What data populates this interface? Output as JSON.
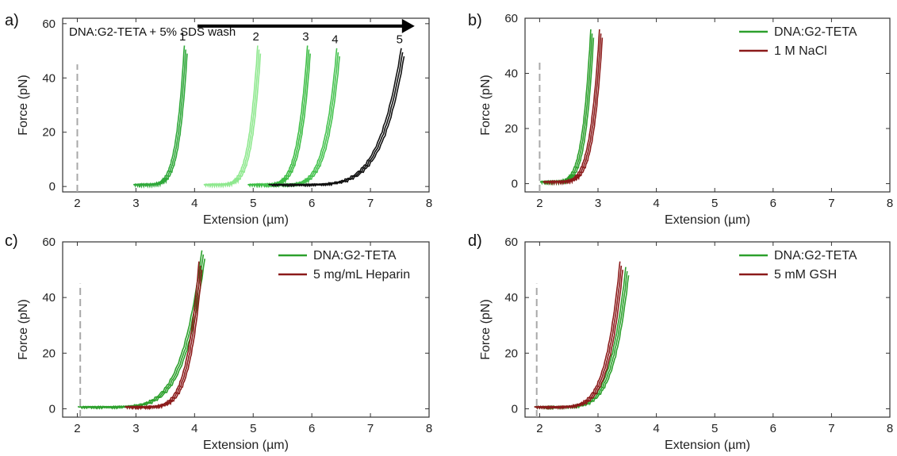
{
  "chart_data": [
    {
      "panel_label": "a)",
      "type": "line",
      "xlabel": "Extension (µm)",
      "ylabel": "Force (pN)",
      "xlim": [
        1.75,
        8
      ],
      "ylim": [
        -2,
        62
      ],
      "xticks": [
        2,
        3,
        4,
        5,
        6,
        7,
        8
      ],
      "yticks": [
        0,
        20,
        40,
        60
      ],
      "ref_x": 2.0,
      "ref_color": "#a9a9a9",
      "annotation": "DNA:G2-TETA + 5% SDS wash",
      "annotation_color": "#111111",
      "arrow": {
        "x_start": 4.05,
        "x_end": 7.7,
        "y": 60,
        "color": "#000000"
      },
      "series": [
        {
          "name": "1",
          "color": "#2fa83a",
          "x0": 3.0,
          "x1": 3.85,
          "top": 52
        },
        {
          "name": "2",
          "color": "#8fe88f",
          "x0": 4.2,
          "x1": 5.1,
          "top": 52
        },
        {
          "name": "3",
          "color": "#3dbd45",
          "x0": 4.95,
          "x1": 5.95,
          "top": 52
        },
        {
          "name": "4",
          "color": "#45c24f",
          "x0": 5.2,
          "x1": 6.45,
          "top": 51
        },
        {
          "name": "5",
          "color": "#111111",
          "x0": 5.3,
          "x1": 7.55,
          "top": 51
        }
      ]
    },
    {
      "panel_label": "b)",
      "type": "line",
      "xlabel": "Extension (µm)",
      "ylabel": "Force (pN)",
      "xlim": [
        1.75,
        8
      ],
      "ylim": [
        -3,
        60
      ],
      "xticks": [
        2,
        3,
        4,
        5,
        6,
        7,
        8
      ],
      "yticks": [
        0,
        20,
        40,
        60
      ],
      "ref_x": 2.0,
      "ref_color": "#a9a9a9",
      "legend_position": "top-right",
      "series": [
        {
          "name": "DNA:G2-TETA",
          "color": "#2ca02c",
          "x0": 2.05,
          "x1": 2.9,
          "top": 56
        },
        {
          "name": "1 M NaCl",
          "color": "#8b1a1a",
          "x0": 2.1,
          "x1": 3.05,
          "top": 56
        }
      ]
    },
    {
      "panel_label": "c)",
      "type": "line",
      "xlabel": "Extension (µm)",
      "ylabel": "Force (pN)",
      "xlim": [
        1.75,
        8
      ],
      "ylim": [
        -3,
        60
      ],
      "xticks": [
        2,
        3,
        4,
        5,
        6,
        7,
        8
      ],
      "yticks": [
        0,
        20,
        40,
        60
      ],
      "ref_x": 2.05,
      "ref_color": "#a9a9a9",
      "legend_position": "top-right",
      "series": [
        {
          "name": "DNA:G2-TETA",
          "color": "#2ca02c",
          "x0": 2.05,
          "x1": 4.15,
          "top": 57
        },
        {
          "name": "5 mg/mL Heparin",
          "color": "#8b1a1a",
          "x0": 2.85,
          "x1": 4.1,
          "top": 53
        }
      ]
    },
    {
      "panel_label": "d)",
      "type": "line",
      "xlabel": "Extension (µm)",
      "ylabel": "Force (pN)",
      "xlim": [
        1.75,
        8
      ],
      "ylim": [
        -3,
        60
      ],
      "xticks": [
        2,
        3,
        4,
        5,
        6,
        7,
        8
      ],
      "yticks": [
        0,
        20,
        40,
        60
      ],
      "ref_x": 1.95,
      "ref_color": "#a9a9a9",
      "legend_position": "top-right",
      "series": [
        {
          "name": "DNA:G2-TETA",
          "color": "#2ca02c",
          "x0": 1.95,
          "x1": 3.5,
          "top": 51
        },
        {
          "name": "5 mM GSH",
          "color": "#8b1a1a",
          "x0": 1.95,
          "x1": 3.4,
          "top": 53
        }
      ]
    }
  ]
}
